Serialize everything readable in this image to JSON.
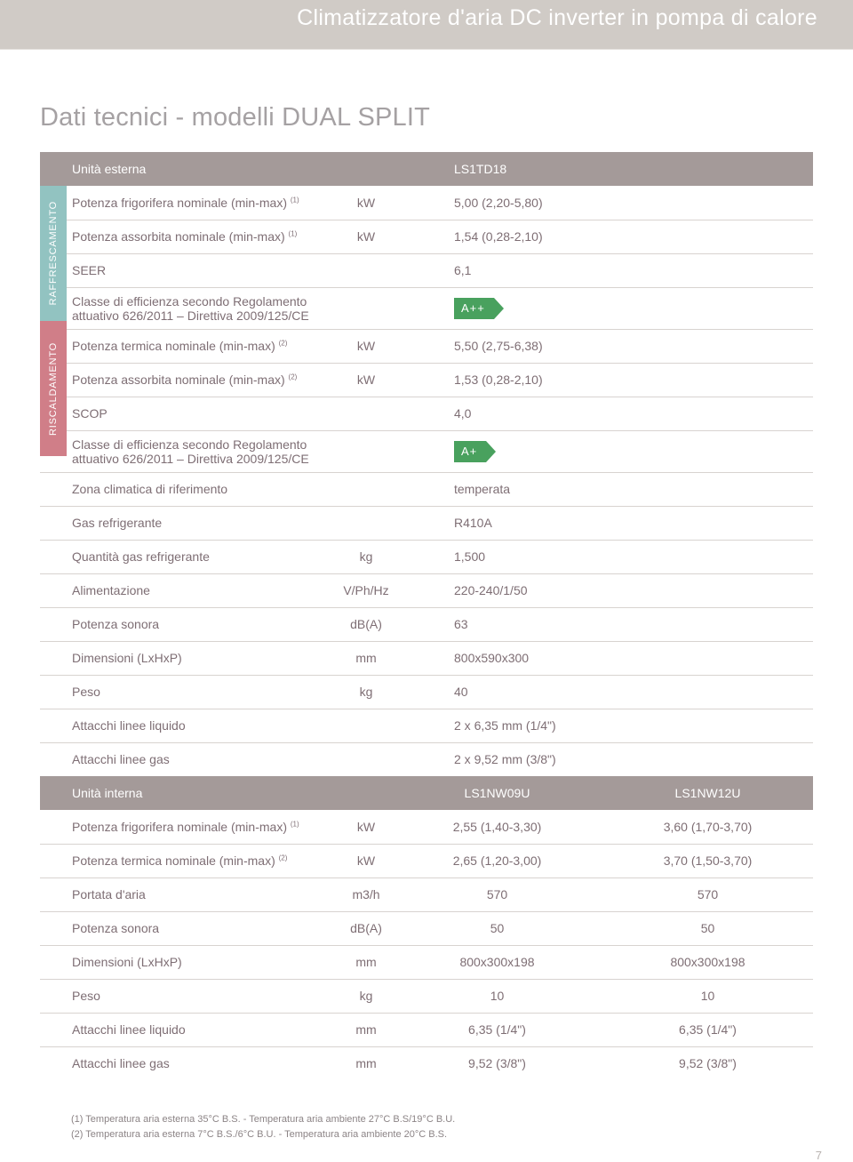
{
  "hero": {
    "title": "Climatizzatore d'aria DC inverter in pompa di calore"
  },
  "section_title": "Dati tecnici - modelli DUAL SPLIT",
  "sidebars": {
    "cool": "RAFFRESCAMENTO",
    "heat": "RISCALDAMENTO"
  },
  "outdoor_header": {
    "label": "Unità esterna",
    "model": "LS1TD18"
  },
  "outdoor_rows": [
    {
      "label": "Potenza frigorifera nominale (min-max)",
      "sup": "(1)",
      "unit": "kW",
      "val": "5,00 (2,20-5,80)"
    },
    {
      "label": "Potenza assorbita nominale (min-max)",
      "sup": "(1)",
      "unit": "kW",
      "val": "1,54 (0,28-2,10)"
    },
    {
      "label": "SEER",
      "unit": "",
      "val": "6,1"
    },
    {
      "label": "Classe di efficienza secondo Regolamento attuativo 626/2011 – Direttiva 2009/125/CE",
      "unit": "",
      "badge": "A++"
    },
    {
      "label": "Potenza termica nominale (min-max)",
      "sup": "(2)",
      "unit": "kW",
      "val": "5,50 (2,75-6,38)"
    },
    {
      "label": "Potenza assorbita nominale (min-max)",
      "sup": "(2)",
      "unit": "kW",
      "val": "1,53 (0,28-2,10)"
    },
    {
      "label": "SCOP",
      "unit": "",
      "val": "4,0"
    },
    {
      "label": "Classe di efficienza secondo Regolamento attuativo 626/2011 – Direttiva 2009/125/CE",
      "unit": "",
      "badge": "A+"
    },
    {
      "label": "Zona climatica di riferimento",
      "unit": "",
      "val": "temperata"
    },
    {
      "label": "Gas refrigerante",
      "unit": "",
      "val": "R410A"
    },
    {
      "label": "Quantità gas refrigerante",
      "unit": "kg",
      "val": "1,500"
    },
    {
      "label": "Alimentazione",
      "unit": "V/Ph/Hz",
      "val": "220-240/1/50"
    },
    {
      "label": "Potenza sonora",
      "unit": "dB(A)",
      "val": "63"
    },
    {
      "label": "Dimensioni (LxHxP)",
      "unit": "mm",
      "val": "800x590x300"
    },
    {
      "label": "Peso",
      "unit": "kg",
      "val": "40"
    },
    {
      "label": "Attacchi linee liquido",
      "unit": "",
      "val": "2 x 6,35 mm (1/4\")"
    },
    {
      "label": "Attacchi linee gas",
      "unit": "",
      "val": "2 x 9,52 mm (3/8\")"
    }
  ],
  "indoor_header": {
    "label": "Unità interna",
    "m1": "LS1NW09U",
    "m2": "LS1NW12U"
  },
  "indoor_rows": [
    {
      "label": "Potenza frigorifera nominale (min-max)",
      "sup": "(1)",
      "unit": "kW",
      "v1": "2,55 (1,40-3,30)",
      "v2": "3,60 (1,70-3,70)"
    },
    {
      "label": "Potenza termica nominale (min-max)",
      "sup": "(2)",
      "unit": "kW",
      "v1": "2,65 (1,20-3,00)",
      "v2": "3,70 (1,50-3,70)"
    },
    {
      "label": "Portata d'aria",
      "unit": "m3/h",
      "v1": "570",
      "v2": "570"
    },
    {
      "label": "Potenza sonora",
      "unit": "dB(A)",
      "v1": "50",
      "v2": "50"
    },
    {
      "label": "Dimensioni (LxHxP)",
      "unit": "mm",
      "v1": "800x300x198",
      "v2": "800x300x198"
    },
    {
      "label": "Peso",
      "unit": "kg",
      "v1": "10",
      "v2": "10"
    },
    {
      "label": "Attacchi linee liquido",
      "unit": "mm",
      "v1": "6,35 (1/4\")",
      "v2": "6,35 (1/4\")"
    },
    {
      "label": "Attacchi linee gas",
      "unit": "mm",
      "v1": "9,52 (3/8\")",
      "v2": "9,52 (3/8\")"
    }
  ],
  "footnotes": {
    "n1": "(1) Temperatura aria esterna 35°C B.S. - Temperatura aria ambiente 27°C B.S/19°C B.U.",
    "n2": "(2) Temperatura aria esterna 7°C B.S./6°C B.U. - Temperatura aria ambiente 20°C B.S."
  },
  "page_number": "7",
  "colors": {
    "hero_bg": "#d0cbc6",
    "header_row": "#a49a99",
    "cool_tab": "#92c3c1",
    "heat_tab": "#d07e88",
    "badge": "#49a15e",
    "rule": "#d8d3d0",
    "text": "#7e6e74"
  }
}
